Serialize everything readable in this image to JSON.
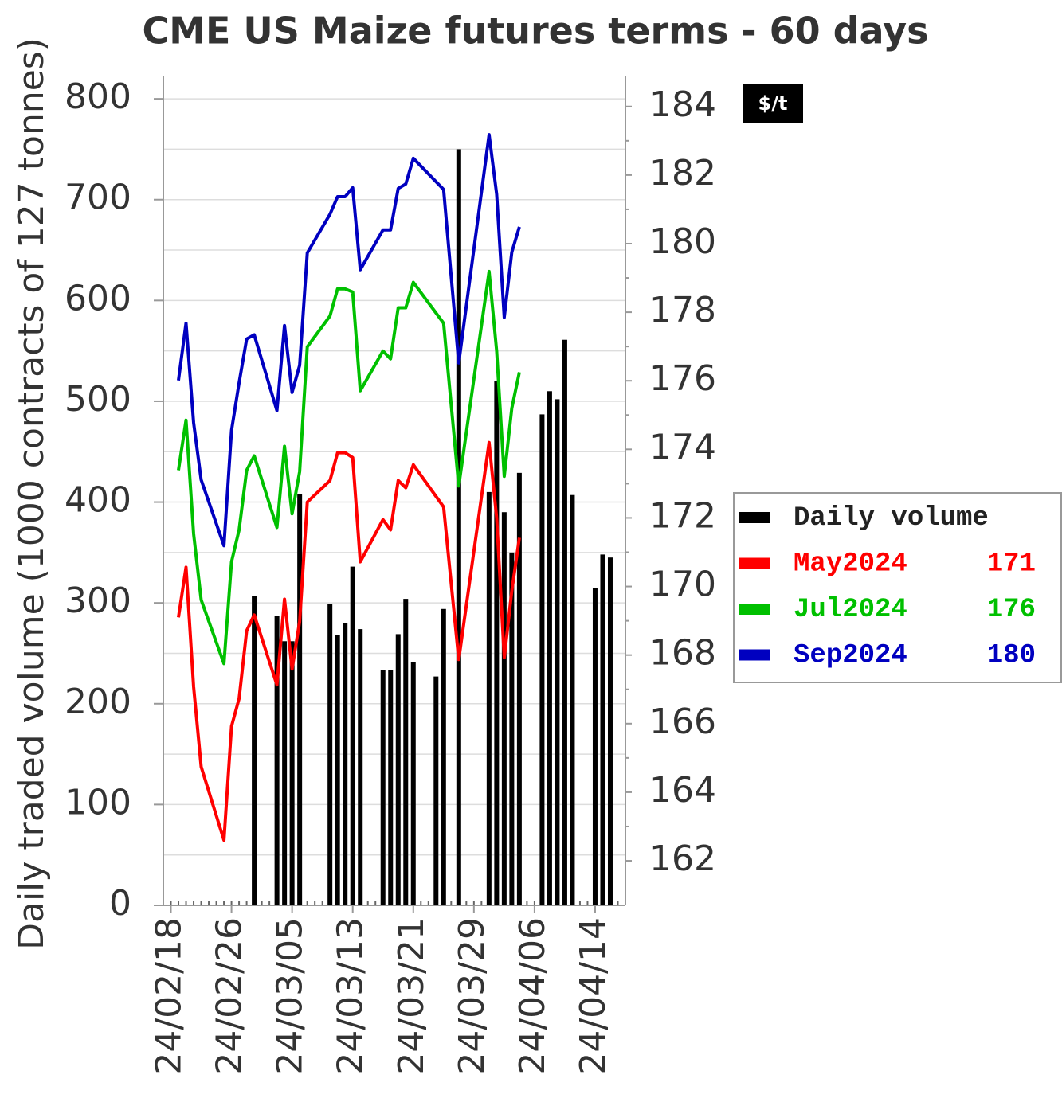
{
  "chart_data": {
    "type": "bar-line",
    "title": "CME US Maize futures terms - 60 days",
    "y_label": "Daily traded volume (1000 contracts of 127 tonnes)",
    "y2_unit": "$/t",
    "xlim": [
      "24/02/17",
      "24/04/18"
    ],
    "xticks": [
      "24/02/18",
      "24/02/26",
      "24/03/05",
      "24/03/13",
      "24/03/21",
      "24/03/29",
      "24/04/06",
      "24/04/14"
    ],
    "ylim": [
      0,
      823
    ],
    "yticks": [
      0,
      100,
      200,
      300,
      400,
      500,
      600,
      700,
      800
    ],
    "y2lim": [
      160.7,
      184.9
    ],
    "y2ticks": [
      162,
      164,
      166,
      168,
      170,
      172,
      174,
      176,
      178,
      180,
      182,
      184
    ],
    "grid": true,
    "legend": "right",
    "series": [
      {
        "name": "Daily volume",
        "type": "bar",
        "color": "#000000",
        "axis": "y",
        "x": [
          "24/02/29",
          "24/03/03",
          "24/03/04",
          "24/03/05",
          "24/03/06",
          "24/03/10",
          "24/03/11",
          "24/03/12",
          "24/03/13",
          "24/03/14",
          "24/03/17",
          "24/03/18",
          "24/03/19",
          "24/03/20",
          "24/03/21",
          "24/03/24",
          "24/03/25",
          "24/03/27",
          "24/03/31",
          "24/04/01",
          "24/04/02",
          "24/04/03",
          "24/04/04",
          "24/04/07",
          "24/04/08",
          "24/04/09",
          "24/04/10",
          "24/04/11",
          "24/04/14",
          "24/04/15",
          "24/04/16"
        ],
        "values": [
          307,
          287,
          262,
          262,
          408,
          299,
          268,
          280,
          336,
          274,
          233,
          233,
          269,
          304,
          241,
          227,
          294,
          750,
          410,
          520,
          390,
          350,
          429,
          487,
          510,
          502,
          561,
          407,
          315,
          348,
          345
        ]
      },
      {
        "name": "May2024",
        "type": "line",
        "color": "#ff0000",
        "axis": "y2",
        "legend_value": 171,
        "x": [
          "24/02/19",
          "24/02/20",
          "24/02/21",
          "24/02/22",
          "24/02/25",
          "24/02/26",
          "24/02/27",
          "24/02/28",
          "24/02/29",
          "24/03/03",
          "24/03/04",
          "24/03/05",
          "24/03/06",
          "24/03/07",
          "24/03/10",
          "24/03/11",
          "24/03/12",
          "24/03/13",
          "24/03/14",
          "24/03/17",
          "24/03/18",
          "24/03/19",
          "24/03/20",
          "24/03/21",
          "24/03/25",
          "24/03/27",
          "24/03/31",
          "24/04/01",
          "24/04/02",
          "24/04/03",
          "24/04/04"
        ],
        "values": [
          169.1,
          170.56,
          167.08,
          164.74,
          162.6,
          165.92,
          166.73,
          168.71,
          169.17,
          167.13,
          169.63,
          167.59,
          168.98,
          172.46,
          173.09,
          173.9,
          173.9,
          173.76,
          170.72,
          171.95,
          171.65,
          173.09,
          172.88,
          173.55,
          172.32,
          167.87,
          174.2,
          172.0,
          167.92,
          169.87,
          171.42
        ]
      },
      {
        "name": "Jul2024",
        "type": "line",
        "color": "#00c000",
        "axis": "y2",
        "legend_value": 176,
        "x": [
          "24/02/19",
          "24/02/20",
          "24/02/21",
          "24/02/22",
          "24/02/25",
          "24/02/26",
          "24/02/27",
          "24/02/28",
          "24/02/29",
          "24/03/03",
          "24/03/04",
          "24/03/05",
          "24/03/06",
          "24/03/07",
          "24/03/10",
          "24/03/11",
          "24/03/12",
          "24/03/13",
          "24/03/14",
          "24/03/17",
          "24/03/18",
          "24/03/19",
          "24/03/20",
          "24/03/21",
          "24/03/25",
          "24/03/27",
          "24/03/31",
          "24/04/01",
          "24/04/02",
          "24/04/03",
          "24/04/04"
        ],
        "values": [
          173.39,
          174.85,
          171.54,
          169.61,
          167.75,
          170.72,
          171.65,
          173.39,
          173.81,
          171.72,
          174.09,
          172.12,
          173.35,
          176.99,
          177.89,
          178.68,
          178.68,
          178.59,
          175.71,
          176.87,
          176.64,
          178.13,
          178.13,
          178.87,
          177.68,
          172.93,
          179.19,
          176.87,
          173.21,
          175.2,
          176.25
        ]
      },
      {
        "name": "Sep2024",
        "type": "line",
        "color": "#0000c0",
        "axis": "y2",
        "legend_value": 180,
        "x": [
          "24/02/19",
          "24/02/20",
          "24/02/21",
          "24/02/22",
          "24/02/25",
          "24/02/26",
          "24/02/27",
          "24/02/28",
          "24/02/29",
          "24/03/03",
          "24/03/04",
          "24/03/05",
          "24/03/06",
          "24/03/07",
          "24/03/10",
          "24/03/11",
          "24/03/12",
          "24/03/13",
          "24/03/14",
          "24/03/17",
          "24/03/18",
          "24/03/19",
          "24/03/20",
          "24/03/21",
          "24/03/25",
          "24/03/27",
          "24/03/31",
          "24/04/01",
          "24/04/02",
          "24/04/03",
          "24/04/04"
        ],
        "values": [
          176.01,
          177.68,
          174.78,
          173.11,
          171.19,
          174.55,
          175.94,
          177.22,
          177.34,
          175.13,
          177.61,
          175.66,
          176.45,
          179.73,
          180.86,
          181.37,
          181.37,
          181.63,
          179.24,
          180.4,
          180.4,
          181.61,
          181.74,
          182.49,
          181.58,
          176.52,
          183.18,
          181.44,
          177.85,
          179.75,
          180.49
        ]
      }
    ]
  }
}
